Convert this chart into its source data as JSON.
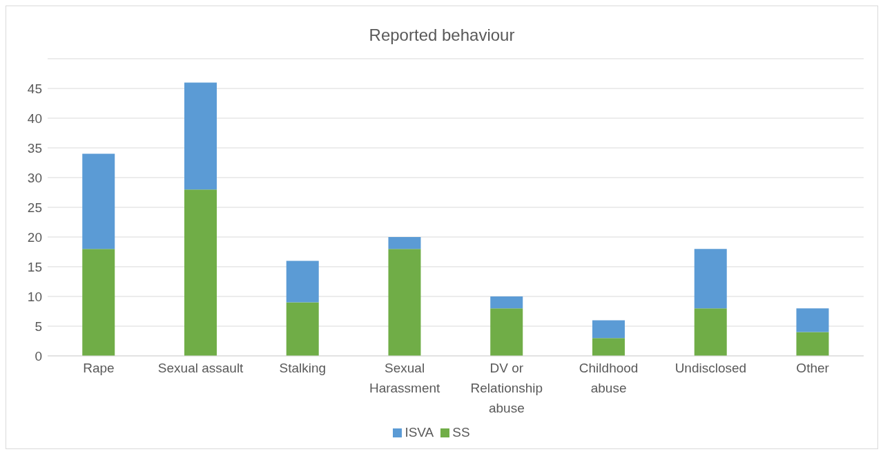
{
  "chart_data": {
    "type": "bar",
    "title": "Reported behaviour",
    "stacked": true,
    "categories": [
      "Rape",
      "Sexual assault",
      "Stalking",
      "Sexual Harassment",
      "DV or Relationship abuse",
      "Childhood abuse",
      "Undisclosed",
      "Other"
    ],
    "series": [
      {
        "name": "SS",
        "color": "#70ad47",
        "values": [
          18,
          28,
          9,
          18,
          8,
          3,
          8,
          4
        ]
      },
      {
        "name": "ISVA",
        "color": "#5b9bd5",
        "values": [
          16,
          18,
          7,
          2,
          2,
          3,
          10,
          4
        ]
      }
    ],
    "ylim": [
      0,
      50
    ],
    "yticks": [
      0,
      5,
      10,
      15,
      20,
      25,
      30,
      35,
      40,
      45
    ],
    "grid": "y",
    "legend": "bottom"
  }
}
